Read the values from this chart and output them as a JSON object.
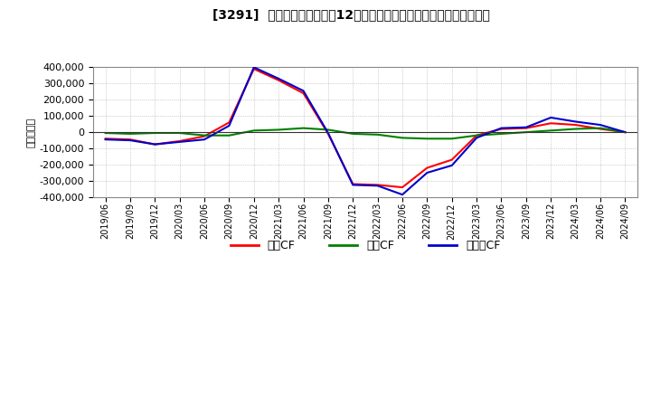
{
  "title": "[3291]  キャッシュフローの12か月移動合計の対前年同期増減額の推移",
  "ylabel": "（百万円）",
  "background_color": "#ffffff",
  "plot_bg_color": "#ffffff",
  "grid_color": "#aaaaaa",
  "line_colors": {
    "eigyo": "#ff0000",
    "toshi": "#008000",
    "free": "#0000cc"
  },
  "legend_labels": [
    "営業CF",
    "投資CF",
    "フリーCF"
  ],
  "ylim": [
    -400000,
    400000
  ],
  "yticks": [
    -400000,
    -300000,
    -200000,
    -100000,
    0,
    100000,
    200000,
    300000,
    400000
  ],
  "x_labels": [
    "2019/06",
    "2019/09",
    "2019/12",
    "2020/03",
    "2020/06",
    "2020/09",
    "2020/12",
    "2021/03",
    "2021/06",
    "2021/09",
    "2021/12",
    "2022/03",
    "2022/06",
    "2022/09",
    "2022/12",
    "2023/03",
    "2023/06",
    "2023/09",
    "2023/12",
    "2024/03",
    "2024/06",
    "2024/09"
  ],
  "eigyo_cf": [
    -40000,
    -45000,
    -75000,
    -55000,
    -25000,
    60000,
    390000,
    320000,
    240000,
    -10000,
    -320000,
    -325000,
    -340000,
    -220000,
    -170000,
    -20000,
    20000,
    25000,
    55000,
    45000,
    20000,
    0
  ],
  "toshi_cf": [
    -5000,
    -10000,
    -5000,
    -5000,
    -20000,
    -20000,
    10000,
    15000,
    25000,
    15000,
    -10000,
    -15000,
    -35000,
    -40000,
    -40000,
    -20000,
    -10000,
    0,
    10000,
    20000,
    25000,
    0
  ],
  "free_cf": [
    -45000,
    -50000,
    -75000,
    -60000,
    -45000,
    40000,
    400000,
    330000,
    255000,
    -5000,
    -325000,
    -330000,
    -385000,
    -250000,
    -205000,
    -35000,
    25000,
    30000,
    90000,
    65000,
    45000,
    0
  ]
}
